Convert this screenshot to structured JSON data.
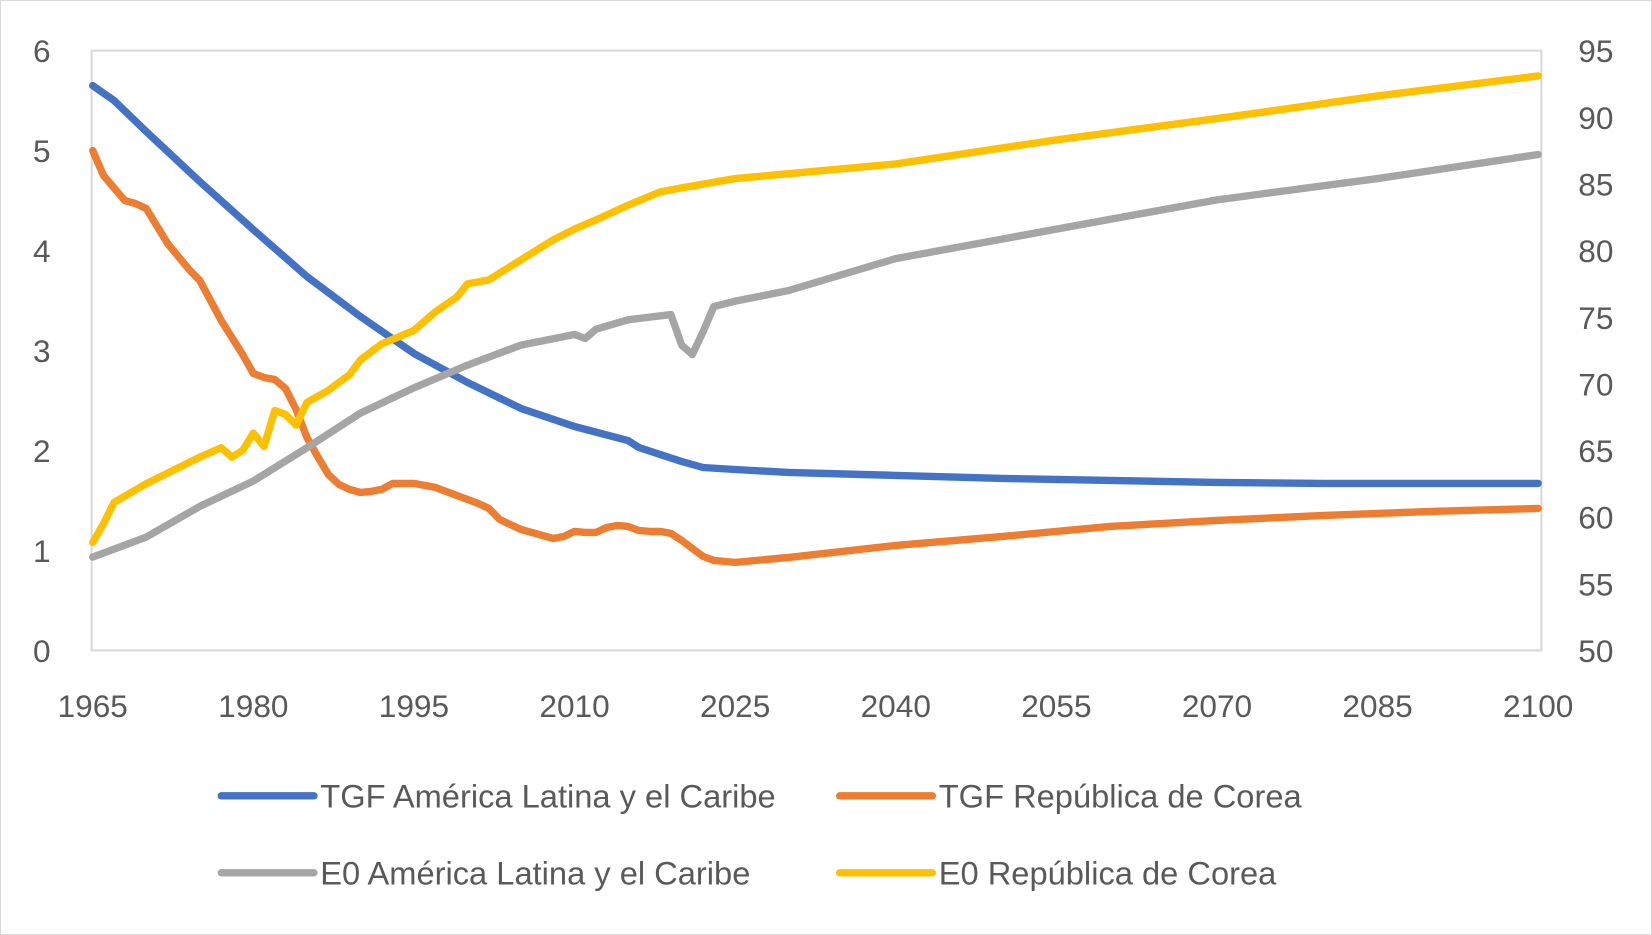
{
  "chart_data": {
    "type": "line",
    "title": "",
    "xlabel": "",
    "ylabel_left": "",
    "ylabel_right": "",
    "xlim": [
      1965,
      2100
    ],
    "ylim_left": [
      0,
      6
    ],
    "ylim_right": [
      50,
      95
    ],
    "x_ticks": [
      1965,
      1980,
      1995,
      2010,
      2025,
      2040,
      2055,
      2070,
      2085,
      2100
    ],
    "y_left_ticks": [
      0,
      1,
      2,
      3,
      4,
      5,
      6
    ],
    "y_right_ticks": [
      50,
      55,
      60,
      65,
      70,
      75,
      80,
      85,
      90,
      95
    ],
    "grid": false,
    "legend_position": "bottom",
    "series": [
      {
        "name": "TGF América Latina y el Caribe",
        "axis": "left",
        "color": "#4472C4",
        "x": [
          1965,
          1967,
          1970,
          1975,
          1980,
          1985,
          1990,
          1995,
          2000,
          2005,
          2010,
          2015,
          2016,
          2020,
          2022,
          2025,
          2030,
          2040,
          2050,
          2060,
          2070,
          2080,
          2090,
          2100
        ],
        "y": [
          5.65,
          5.5,
          5.19,
          4.69,
          4.21,
          3.74,
          3.34,
          2.97,
          2.68,
          2.42,
          2.24,
          2.1,
          2.03,
          1.89,
          1.83,
          1.81,
          1.78,
          1.75,
          1.72,
          1.7,
          1.68,
          1.67,
          1.67,
          1.67
        ]
      },
      {
        "name": "TGF República de Corea",
        "axis": "left",
        "color": "#ED7D31",
        "x": [
          1965,
          1966,
          1968,
          1969,
          1970,
          1972,
          1974,
          1975,
          1977,
          1979,
          1980,
          1981,
          1982,
          1983,
          1984,
          1985,
          1986,
          1987,
          1988,
          1989,
          1990,
          1991,
          1992,
          1993,
          1995,
          1997,
          1998,
          2000,
          2001,
          2002,
          2003,
          2005,
          2006,
          2007,
          2008,
          2009,
          2010,
          2011,
          2012,
          2013,
          2014,
          2015,
          2016,
          2017,
          2018,
          2019,
          2020,
          2022,
          2023,
          2025,
          2030,
          2040,
          2050,
          2060,
          2070,
          2080,
          2090,
          2100
        ],
        "y": [
          5.0,
          4.75,
          4.5,
          4.47,
          4.42,
          4.07,
          3.81,
          3.7,
          3.3,
          2.96,
          2.77,
          2.73,
          2.71,
          2.62,
          2.41,
          2.13,
          1.94,
          1.76,
          1.66,
          1.61,
          1.58,
          1.59,
          1.61,
          1.67,
          1.67,
          1.63,
          1.59,
          1.51,
          1.47,
          1.42,
          1.31,
          1.21,
          1.18,
          1.15,
          1.12,
          1.14,
          1.19,
          1.18,
          1.18,
          1.23,
          1.25,
          1.24,
          1.2,
          1.19,
          1.19,
          1.17,
          1.1,
          0.94,
          0.9,
          0.88,
          0.93,
          1.05,
          1.14,
          1.24,
          1.3,
          1.35,
          1.39,
          1.42
        ]
      },
      {
        "name": "E0 América Latina y el Caribe",
        "axis": "right",
        "color": "#A5A5A5",
        "x": [
          1965,
          1970,
          1975,
          1980,
          1985,
          1990,
          1995,
          2000,
          2005,
          2010,
          2011,
          2012,
          2015,
          2019,
          2020,
          2021,
          2022,
          2023,
          2025,
          2030,
          2040,
          2055,
          2070,
          2085,
          2100
        ],
        "y": [
          57.0,
          58.5,
          60.8,
          62.7,
          65.2,
          67.8,
          69.7,
          71.4,
          72.9,
          73.7,
          73.4,
          74.1,
          74.8,
          75.2,
          72.9,
          72.2,
          73.9,
          75.8,
          76.2,
          77.0,
          79.4,
          81.6,
          83.8,
          85.4,
          87.2
        ]
      },
      {
        "name": "E0 República de Corea",
        "axis": "right",
        "color": "#FFC000",
        "x": [
          1965,
          1966,
          1967,
          1970,
          1975,
          1977,
          1978,
          1979,
          1980,
          1981,
          1982,
          1983,
          1984,
          1985,
          1987,
          1989,
          1990,
          1992,
          1995,
          1997,
          1999,
          2000,
          2002,
          2005,
          2008,
          2010,
          2012,
          2015,
          2018,
          2020,
          2025,
          2040,
          2055,
          2070,
          2085,
          2100
        ],
        "y": [
          58.1,
          59.5,
          61.1,
          62.5,
          64.5,
          65.2,
          64.5,
          65.0,
          66.3,
          65.3,
          68.0,
          67.7,
          66.9,
          68.6,
          69.5,
          70.7,
          71.8,
          73.0,
          74.0,
          75.4,
          76.5,
          77.5,
          77.8,
          79.3,
          80.8,
          81.6,
          82.3,
          83.4,
          84.4,
          84.7,
          85.4,
          86.5,
          88.3,
          89.9,
          91.6,
          93.1
        ]
      }
    ]
  }
}
